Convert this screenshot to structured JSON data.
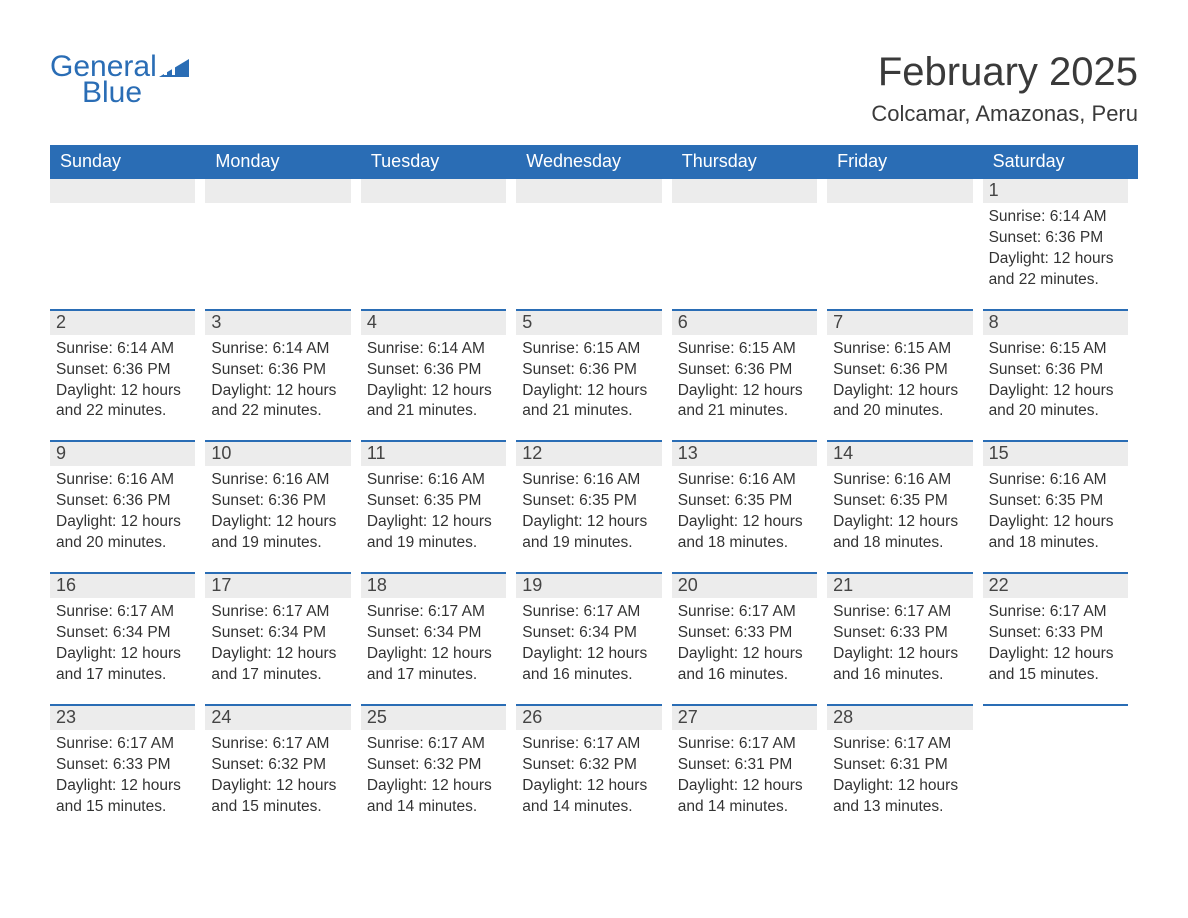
{
  "logo": {
    "word1": "General",
    "word2": "Blue",
    "accent_color": "#2a6db5"
  },
  "title": "February 2025",
  "location": "Colcamar, Amazonas, Peru",
  "colors": {
    "header_bg": "#2a6db5",
    "header_text": "#ffffff",
    "daynum_bg": "#ececec",
    "border_top": "#2a6db5",
    "body_text": "#333333",
    "page_bg": "#ffffff"
  },
  "daysOfWeek": [
    "Sunday",
    "Monday",
    "Tuesday",
    "Wednesday",
    "Thursday",
    "Friday",
    "Saturday"
  ],
  "firstDayIndex": 6,
  "daysInMonth": 28,
  "days": [
    {
      "n": 1,
      "sunrise": "6:14 AM",
      "sunset": "6:36 PM",
      "daylight": "12 hours and 22 minutes."
    },
    {
      "n": 2,
      "sunrise": "6:14 AM",
      "sunset": "6:36 PM",
      "daylight": "12 hours and 22 minutes."
    },
    {
      "n": 3,
      "sunrise": "6:14 AM",
      "sunset": "6:36 PM",
      "daylight": "12 hours and 22 minutes."
    },
    {
      "n": 4,
      "sunrise": "6:14 AM",
      "sunset": "6:36 PM",
      "daylight": "12 hours and 21 minutes."
    },
    {
      "n": 5,
      "sunrise": "6:15 AM",
      "sunset": "6:36 PM",
      "daylight": "12 hours and 21 minutes."
    },
    {
      "n": 6,
      "sunrise": "6:15 AM",
      "sunset": "6:36 PM",
      "daylight": "12 hours and 21 minutes."
    },
    {
      "n": 7,
      "sunrise": "6:15 AM",
      "sunset": "6:36 PM",
      "daylight": "12 hours and 20 minutes."
    },
    {
      "n": 8,
      "sunrise": "6:15 AM",
      "sunset": "6:36 PM",
      "daylight": "12 hours and 20 minutes."
    },
    {
      "n": 9,
      "sunrise": "6:16 AM",
      "sunset": "6:36 PM",
      "daylight": "12 hours and 20 minutes."
    },
    {
      "n": 10,
      "sunrise": "6:16 AM",
      "sunset": "6:36 PM",
      "daylight": "12 hours and 19 minutes."
    },
    {
      "n": 11,
      "sunrise": "6:16 AM",
      "sunset": "6:35 PM",
      "daylight": "12 hours and 19 minutes."
    },
    {
      "n": 12,
      "sunrise": "6:16 AM",
      "sunset": "6:35 PM",
      "daylight": "12 hours and 19 minutes."
    },
    {
      "n": 13,
      "sunrise": "6:16 AM",
      "sunset": "6:35 PM",
      "daylight": "12 hours and 18 minutes."
    },
    {
      "n": 14,
      "sunrise": "6:16 AM",
      "sunset": "6:35 PM",
      "daylight": "12 hours and 18 minutes."
    },
    {
      "n": 15,
      "sunrise": "6:16 AM",
      "sunset": "6:35 PM",
      "daylight": "12 hours and 18 minutes."
    },
    {
      "n": 16,
      "sunrise": "6:17 AM",
      "sunset": "6:34 PM",
      "daylight": "12 hours and 17 minutes."
    },
    {
      "n": 17,
      "sunrise": "6:17 AM",
      "sunset": "6:34 PM",
      "daylight": "12 hours and 17 minutes."
    },
    {
      "n": 18,
      "sunrise": "6:17 AM",
      "sunset": "6:34 PM",
      "daylight": "12 hours and 17 minutes."
    },
    {
      "n": 19,
      "sunrise": "6:17 AM",
      "sunset": "6:34 PM",
      "daylight": "12 hours and 16 minutes."
    },
    {
      "n": 20,
      "sunrise": "6:17 AM",
      "sunset": "6:33 PM",
      "daylight": "12 hours and 16 minutes."
    },
    {
      "n": 21,
      "sunrise": "6:17 AM",
      "sunset": "6:33 PM",
      "daylight": "12 hours and 16 minutes."
    },
    {
      "n": 22,
      "sunrise": "6:17 AM",
      "sunset": "6:33 PM",
      "daylight": "12 hours and 15 minutes."
    },
    {
      "n": 23,
      "sunrise": "6:17 AM",
      "sunset": "6:33 PM",
      "daylight": "12 hours and 15 minutes."
    },
    {
      "n": 24,
      "sunrise": "6:17 AM",
      "sunset": "6:32 PM",
      "daylight": "12 hours and 15 minutes."
    },
    {
      "n": 25,
      "sunrise": "6:17 AM",
      "sunset": "6:32 PM",
      "daylight": "12 hours and 14 minutes."
    },
    {
      "n": 26,
      "sunrise": "6:17 AM",
      "sunset": "6:32 PM",
      "daylight": "12 hours and 14 minutes."
    },
    {
      "n": 27,
      "sunrise": "6:17 AM",
      "sunset": "6:31 PM",
      "daylight": "12 hours and 14 minutes."
    },
    {
      "n": 28,
      "sunrise": "6:17 AM",
      "sunset": "6:31 PM",
      "daylight": "12 hours and 13 minutes."
    }
  ],
  "labels": {
    "sunrise": "Sunrise:",
    "sunset": "Sunset:",
    "daylight": "Daylight:"
  }
}
